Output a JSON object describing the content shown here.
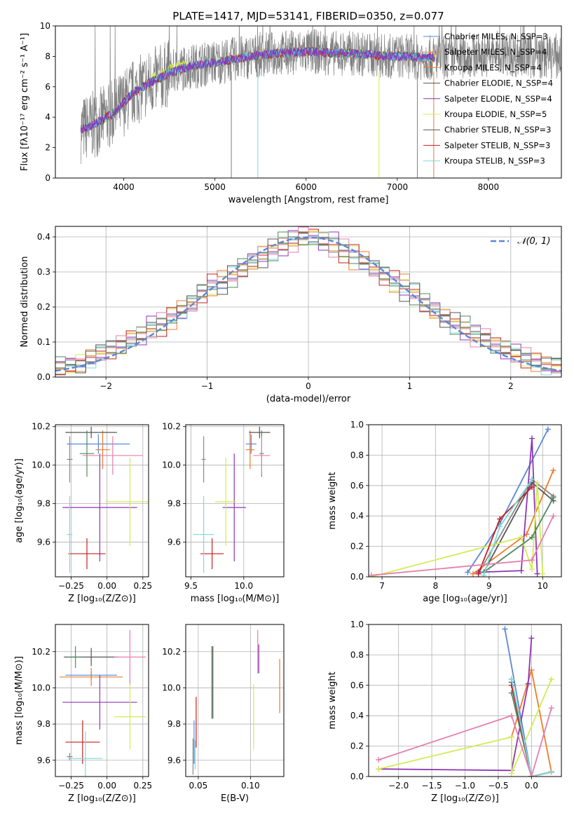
{
  "colors": [
    "#5a87d8",
    "#8a8a8a",
    "#ee7b29",
    "#555555",
    "#8e35b4",
    "#d2ec55",
    "#4e8a5e",
    "#c41f1f",
    "#7fd9db",
    "#e57fae"
  ],
  "chart_data": [
    {
      "type": "line",
      "title": "PLATE=1417, MJD=53141, FIBERID=0350, z=0.077",
      "xlabel": "wavelength [Angstrom, rest frame]",
      "ylabel": "Flux [fλ10⁻¹⁷ erg cm⁻² s⁻¹ A⁻¹]",
      "xlim": [
        3250,
        8800
      ],
      "ylim": [
        0,
        10
      ],
      "xticks": [
        "4000",
        "5000",
        "6000",
        "7000",
        "8000"
      ],
      "yticks": [
        "0",
        "2",
        "4",
        "6",
        "8",
        "10"
      ],
      "legend": "top-right",
      "series": [
        {
          "name": "Chabrier MILES, N_SSP=3"
        },
        {
          "name": "Salpeter MILES, N_SSP=4"
        },
        {
          "name": "Kroupa MILES, N_SSP=4"
        },
        {
          "name": "Chabrier ELODIE, N_SSP=4"
        },
        {
          "name": "Salpeter ELODIE, N_SSP=4"
        },
        {
          "name": "Kroupa ELODIE, N_SSP=5"
        },
        {
          "name": "Chabrier STELIB, N_SSP=3"
        },
        {
          "name": "Salpeter STELIB, N_SSP=3"
        },
        {
          "name": "Kroupa STELIB, N_SSP=3"
        }
      ],
      "data_wavelength": [
        3500,
        3700,
        3900,
        4100,
        4300,
        4500,
        4700,
        4900,
        5100,
        5300,
        5500,
        5700,
        5900,
        6100,
        6300,
        6500,
        6700,
        6900,
        7100,
        7300,
        7500,
        7700,
        7900,
        8100,
        8300,
        8500,
        8700
      ],
      "model_flux": [
        3.1,
        3.6,
        4.3,
        5.6,
        6.3,
        6.9,
        7.3,
        7.5,
        7.7,
        7.9,
        8.1,
        8.2,
        8.3,
        8.3,
        8.2,
        8.2,
        8.1,
        8.0,
        8.0,
        7.9,
        7.9,
        8.0,
        8.1,
        8.2,
        8.1,
        8.0,
        8.0
      ]
    },
    {
      "type": "bar",
      "xlabel": "(data-model)/error",
      "ylabel": "Normed distribution",
      "xlim": [
        -2.5,
        2.5
      ],
      "ylim": [
        0,
        0.43
      ],
      "xticks": [
        "−2",
        "−1",
        "0",
        "1",
        "2"
      ],
      "yticks": [
        "0.0",
        "0.1",
        "0.2",
        "0.3",
        "0.4"
      ],
      "legend": "top-right",
      "reference_curve": {
        "name": "𝒩(0, 1)",
        "type": "normal",
        "mean": 0,
        "sigma": 1
      },
      "bin_edges": [
        -2.5,
        -2.4,
        -2.3,
        -2.2,
        -2.1,
        -2.0,
        -1.9,
        -1.8,
        -1.7,
        -1.6,
        -1.5,
        -1.4,
        -1.3,
        -1.2,
        -1.1,
        -1.0,
        -0.9,
        -0.8,
        -0.7,
        -0.6,
        -0.5,
        -0.4,
        -0.3,
        -0.2,
        -0.1,
        0.0,
        0.1,
        0.2,
        0.3,
        0.4,
        0.5,
        0.6,
        0.7,
        0.8,
        0.9,
        1.0,
        1.1,
        1.2,
        1.3,
        1.4,
        1.5,
        1.6,
        1.7,
        1.8,
        1.9,
        2.0,
        2.1,
        2.2,
        2.3,
        2.4,
        2.5
      ],
      "series_values": [
        [
          0.03,
          0.03,
          0.04,
          0.05,
          0.07,
          0.08,
          0.09,
          0.11,
          0.12,
          0.14,
          0.15,
          0.17,
          0.19,
          0.21,
          0.24,
          0.26,
          0.27,
          0.29,
          0.31,
          0.33,
          0.35,
          0.36,
          0.38,
          0.39,
          0.4,
          0.4,
          0.39,
          0.38,
          0.36,
          0.35,
          0.33,
          0.31,
          0.29,
          0.27,
          0.26,
          0.24,
          0.21,
          0.19,
          0.17,
          0.15,
          0.14,
          0.12,
          0.11,
          0.09,
          0.08,
          0.07,
          0.05,
          0.04,
          0.03,
          0.03
        ],
        [
          0.04,
          0.03,
          0.04,
          0.06,
          0.06,
          0.09,
          0.1,
          0.1,
          0.13,
          0.13,
          0.16,
          0.16,
          0.2,
          0.2,
          0.25,
          0.25,
          0.28,
          0.28,
          0.32,
          0.32,
          0.36,
          0.35,
          0.39,
          0.38,
          0.41,
          0.39,
          0.4,
          0.36,
          0.37,
          0.33,
          0.34,
          0.3,
          0.3,
          0.26,
          0.27,
          0.23,
          0.22,
          0.18,
          0.18,
          0.14,
          0.15,
          0.11,
          0.12,
          0.08,
          0.09,
          0.06,
          0.06,
          0.04,
          0.04,
          0.03
        ],
        [
          0.02,
          0.04,
          0.03,
          0.05,
          0.08,
          0.07,
          0.08,
          0.12,
          0.11,
          0.15,
          0.14,
          0.18,
          0.18,
          0.22,
          0.23,
          0.27,
          0.26,
          0.3,
          0.3,
          0.34,
          0.33,
          0.37,
          0.37,
          0.4,
          0.39,
          0.41,
          0.38,
          0.39,
          0.35,
          0.36,
          0.32,
          0.32,
          0.28,
          0.28,
          0.24,
          0.25,
          0.2,
          0.2,
          0.16,
          0.16,
          0.13,
          0.13,
          0.1,
          0.1,
          0.07,
          0.07,
          0.05,
          0.05,
          0.03,
          0.04
        ]
      ]
    },
    {
      "type": "scatter",
      "panel": "age vs Z",
      "xlabel": "Z [log₁₀(Z/Z⊙)]",
      "ylabel": "age  [log₁₀(age/yr)]",
      "xlim": [
        -0.36,
        0.29
      ],
      "ylim": [
        9.42,
        10.21
      ],
      "xticks": [
        "−0.25",
        "0.00",
        "0.25"
      ],
      "yticks": [
        "9.6",
        "9.8",
        "10.0",
        "10.2"
      ],
      "points": [
        {
          "x": -0.06,
          "xerr": 0.22,
          "y": 10.11,
          "yerr": 0.05
        },
        {
          "x": -0.26,
          "xerr": 0.02,
          "y": 10.03,
          "yerr": 0.12
        },
        {
          "x": -0.03,
          "xerr": 0.05,
          "y": 10.08,
          "yerr": 0.1
        },
        {
          "x": -0.11,
          "xerr": 0.18,
          "y": 10.17,
          "yerr": 0.03
        },
        {
          "x": -0.05,
          "xerr": 0.26,
          "y": 9.78,
          "yerr": 0.28
        },
        {
          "x": 0.16,
          "xerr": 0.17,
          "y": 9.81,
          "yerr": 0.23
        },
        {
          "x": -0.14,
          "xerr": 0.05,
          "y": 10.06,
          "yerr": 0.12
        },
        {
          "x": -0.14,
          "xerr": 0.13,
          "y": 9.54,
          "yerr": 0.08
        },
        {
          "x": -0.26,
          "xerr": 0.02,
          "y": 9.64,
          "yerr": 0.2
        },
        {
          "x": 0.04,
          "xerr": 0.21,
          "y": 10.05,
          "yerr": 0.1
        }
      ]
    },
    {
      "type": "scatter",
      "panel": "age vs mass",
      "xlabel": "mass [log₁₀(M/M⊙)]",
      "xlim": [
        9.45,
        10.38
      ],
      "ylim": [
        9.42,
        10.21
      ],
      "xticks": [
        "9.5",
        "10.0"
      ],
      "yticks": [
        "9.6",
        "9.8",
        "10.0",
        "10.2"
      ],
      "points": [
        {
          "x": 10.07,
          "xerr": 0.05,
          "y": 10.11,
          "yerr": 0.05
        },
        {
          "x": 9.62,
          "xerr": 0.02,
          "y": 10.03,
          "yerr": 0.12
        },
        {
          "x": 10.06,
          "xerr": 0.04,
          "y": 10.08,
          "yerr": 0.1
        },
        {
          "x": 10.15,
          "xerr": 0.1,
          "y": 10.17,
          "yerr": 0.03
        },
        {
          "x": 9.91,
          "xerr": 0.11,
          "y": 9.78,
          "yerr": 0.28
        },
        {
          "x": 9.83,
          "xerr": 0.1,
          "y": 9.81,
          "yerr": 0.23
        },
        {
          "x": 10.17,
          "xerr": 0.02,
          "y": 10.06,
          "yerr": 0.12
        },
        {
          "x": 9.7,
          "xerr": 0.11,
          "y": 9.54,
          "yerr": 0.08
        },
        {
          "x": 9.62,
          "xerr": 0.1,
          "y": 9.64,
          "yerr": 0.2
        },
        {
          "x": 10.17,
          "xerr": 0.08,
          "y": 10.05,
          "yerr": 0.1
        }
      ]
    },
    {
      "type": "line",
      "panel": "mass weight vs age",
      "xlabel": "age  [log₁₀(age/yr)]",
      "ylabel": "mass weight",
      "xlim": [
        6.75,
        10.35
      ],
      "ylim": [
        0,
        1
      ],
      "xticks": [
        "7",
        "8",
        "9",
        "10"
      ],
      "yticks": [
        "0.0",
        "0.2",
        "0.4",
        "0.6",
        "0.8",
        "1.0"
      ],
      "series": [
        {
          "x": [
            8.6,
            9.2,
            10.1
          ],
          "y": [
            0.03,
            0.35,
            0.97
          ]
        },
        {
          "x": [
            8.8,
            9.8,
            10.2
          ],
          "y": [
            0.02,
            0.64,
            0.53
          ]
        },
        {
          "x": [
            8.7,
            9.7,
            10.2
          ],
          "y": [
            0.02,
            0.28,
            0.7
          ]
        },
        {
          "x": [
            8.9,
            9.8,
            10.2
          ],
          "y": [
            0.03,
            0.62,
            0.5
          ]
        },
        {
          "x": [
            8.8,
            9.6,
            9.8,
            9.9
          ],
          "y": [
            0.03,
            0.04,
            0.91,
            0.02
          ]
        },
        {
          "x": [
            6.8,
            9.6,
            9.8,
            9.9,
            10.0
          ],
          "y": [
            0.0,
            0.26,
            0.05,
            0.62,
            0.02
          ]
        },
        {
          "x": [
            8.9,
            9.8,
            10.2
          ],
          "y": [
            0.03,
            0.26,
            0.52
          ]
        },
        {
          "x": [
            8.8,
            9.2,
            9.8
          ],
          "y": [
            0.02,
            0.38,
            0.59
          ]
        },
        {
          "x": [
            8.9,
            9.2,
            9.8
          ],
          "y": [
            0.01,
            0.33,
            0.64
          ]
        },
        {
          "x": [
            6.8,
            9.8,
            10.2
          ],
          "y": [
            0.01,
            0.11,
            0.4
          ]
        }
      ]
    },
    {
      "type": "scatter",
      "panel": "mass vs Z",
      "xlabel": "Z [log₁₀(Z/Z⊙)]",
      "ylabel": "mass [log₁₀(M/M⊙)]",
      "xlim": [
        -0.36,
        0.29
      ],
      "ylim": [
        9.51,
        10.35
      ],
      "xticks": [
        "−0.25",
        "0.00",
        "0.25"
      ],
      "yticks": [
        "9.6",
        "9.8",
        "10.0",
        "10.2"
      ],
      "points": [
        {
          "x": -0.11,
          "xerr": 0.18,
          "y": 10.07,
          "yerr": 0.02
        },
        {
          "x": -0.26,
          "xerr": 0.02,
          "y": 9.62,
          "yerr": 0.02
        },
        {
          "x": -0.11,
          "xerr": 0.22,
          "y": 10.06,
          "yerr": 0.05
        },
        {
          "x": -0.11,
          "xerr": 0.19,
          "y": 10.17,
          "yerr": 0.05
        },
        {
          "x": -0.05,
          "xerr": 0.26,
          "y": 9.92,
          "yerr": 0.15
        },
        {
          "x": 0.16,
          "xerr": 0.11,
          "y": 9.84,
          "yerr": 0.18
        },
        {
          "x": -0.22,
          "xerr": 0.05,
          "y": 10.17,
          "yerr": 0.06
        },
        {
          "x": -0.17,
          "xerr": 0.12,
          "y": 9.7,
          "yerr": 0.12
        },
        {
          "x": -0.15,
          "xerr": 0.12,
          "y": 9.61,
          "yerr": 0.15
        },
        {
          "x": 0.16,
          "xerr": 0.11,
          "y": 10.17,
          "yerr": 0.15
        }
      ]
    },
    {
      "type": "scatter",
      "panel": "mass vs E(B-V)",
      "xlabel": "E(B-V)",
      "xlim": [
        0.038,
        0.132
      ],
      "ylim": [
        9.51,
        10.35
      ],
      "xticks": [
        "0.05",
        "0.10"
      ],
      "yticks": [
        "9.6",
        "9.8",
        "10.0",
        "10.2"
      ],
      "points": [
        {
          "x": 0.046,
          "y": 9.7,
          "yerr": 0.12
        },
        {
          "x": 0.045,
          "y": 9.62,
          "yerr": 0.1
        },
        {
          "x": 0.128,
          "y": 10.01,
          "yerr": 0.15
        },
        {
          "x": 0.064,
          "y": 10.03,
          "yerr": 0.2
        },
        {
          "x": 0.108,
          "y": 10.16,
          "yerr": 0.08
        },
        {
          "x": 0.103,
          "y": 9.84,
          "yerr": 0.18
        },
        {
          "x": 0.063,
          "y": 10.03,
          "yerr": 0.2
        },
        {
          "x": 0.048,
          "y": 9.81,
          "yerr": 0.14
        },
        {
          "x": 0.047,
          "y": 9.63,
          "yerr": 0.08
        },
        {
          "x": 0.107,
          "y": 10.2,
          "yerr": 0.12
        }
      ]
    },
    {
      "type": "line",
      "panel": "mass weight vs Z",
      "xlabel": "Z [log₁₀(Z/Z⊙)]",
      "ylabel": "mass weight",
      "xlim": [
        -2.45,
        0.45
      ],
      "ylim": [
        0,
        1
      ],
      "xticks": [
        "−2.0",
        "−1.5",
        "−1.0",
        "−0.5",
        "0.0"
      ],
      "yticks": [
        "0.0",
        "0.2",
        "0.4",
        "0.6",
        "0.8",
        "1.0"
      ],
      "series": [
        {
          "x": [
            -0.4,
            0.0,
            0.3
          ],
          "y": [
            0.97,
            0.0,
            0.03
          ]
        },
        {
          "x": [
            -0.3,
            0.0,
            0.3
          ],
          "y": [
            0.64,
            0.0,
            0.03
          ]
        },
        {
          "x": [
            -0.3,
            0.0,
            0.3
          ],
          "y": [
            0.26,
            0.7,
            0.03
          ]
        },
        {
          "x": [
            -0.3,
            0.0,
            0.3
          ],
          "y": [
            0.62,
            0.0,
            0.03
          ]
        },
        {
          "x": [
            -2.3,
            -0.3,
            -0.05,
            0.0
          ],
          "y": [
            0.05,
            0.04,
            0.61,
            0.91
          ]
        },
        {
          "x": [
            -2.3,
            -0.3,
            -0.3,
            0.3
          ],
          "y": [
            0.05,
            0.26,
            0.02,
            0.64
          ]
        },
        {
          "x": [
            -0.3,
            0.0,
            0.3
          ],
          "y": [
            0.55,
            0.0,
            0.03
          ]
        },
        {
          "x": [
            -0.3,
            0.0,
            0.3
          ],
          "y": [
            0.6,
            0.0,
            0.03
          ]
        },
        {
          "x": [
            -0.3,
            0.0,
            0.3
          ],
          "y": [
            0.64,
            0.0,
            0.03
          ]
        },
        {
          "x": [
            -2.3,
            -0.3,
            0.0,
            0.3
          ],
          "y": [
            0.11,
            0.4,
            0.0,
            0.45
          ]
        }
      ]
    }
  ]
}
